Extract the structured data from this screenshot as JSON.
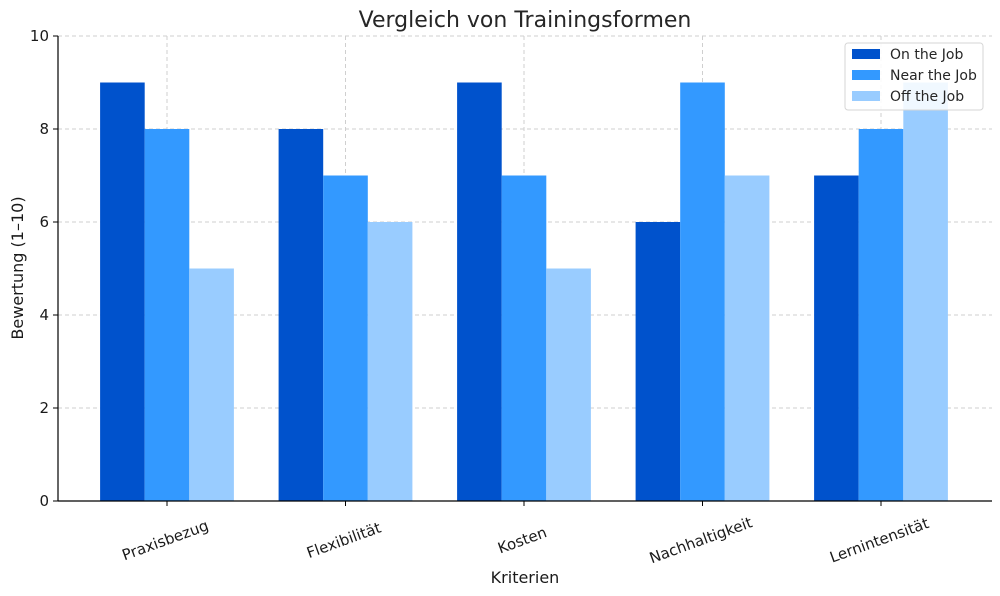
{
  "chart_data": {
    "type": "bar",
    "title": "Vergleich von Trainingsformen",
    "xlabel": "Kriterien",
    "ylabel": "Bewertung (1–10)",
    "ylim": [
      0,
      10
    ],
    "yticks": [
      0,
      2,
      4,
      6,
      8,
      10
    ],
    "grid": true,
    "legend_position": "top-right",
    "categories": [
      "Praxisbezug",
      "Flexibilität",
      "Kosten",
      "Nachhaltigkeit",
      "Lernintensität"
    ],
    "series": [
      {
        "name": "On the Job",
        "color": "#0052cc",
        "values": [
          9,
          8,
          9,
          6,
          7
        ]
      },
      {
        "name": "Near the Job",
        "color": "#3399ff",
        "values": [
          8,
          7,
          7,
          9,
          8
        ]
      },
      {
        "name": "Off the Job",
        "color": "#99ccff",
        "values": [
          5,
          6,
          5,
          7,
          9
        ]
      }
    ]
  }
}
